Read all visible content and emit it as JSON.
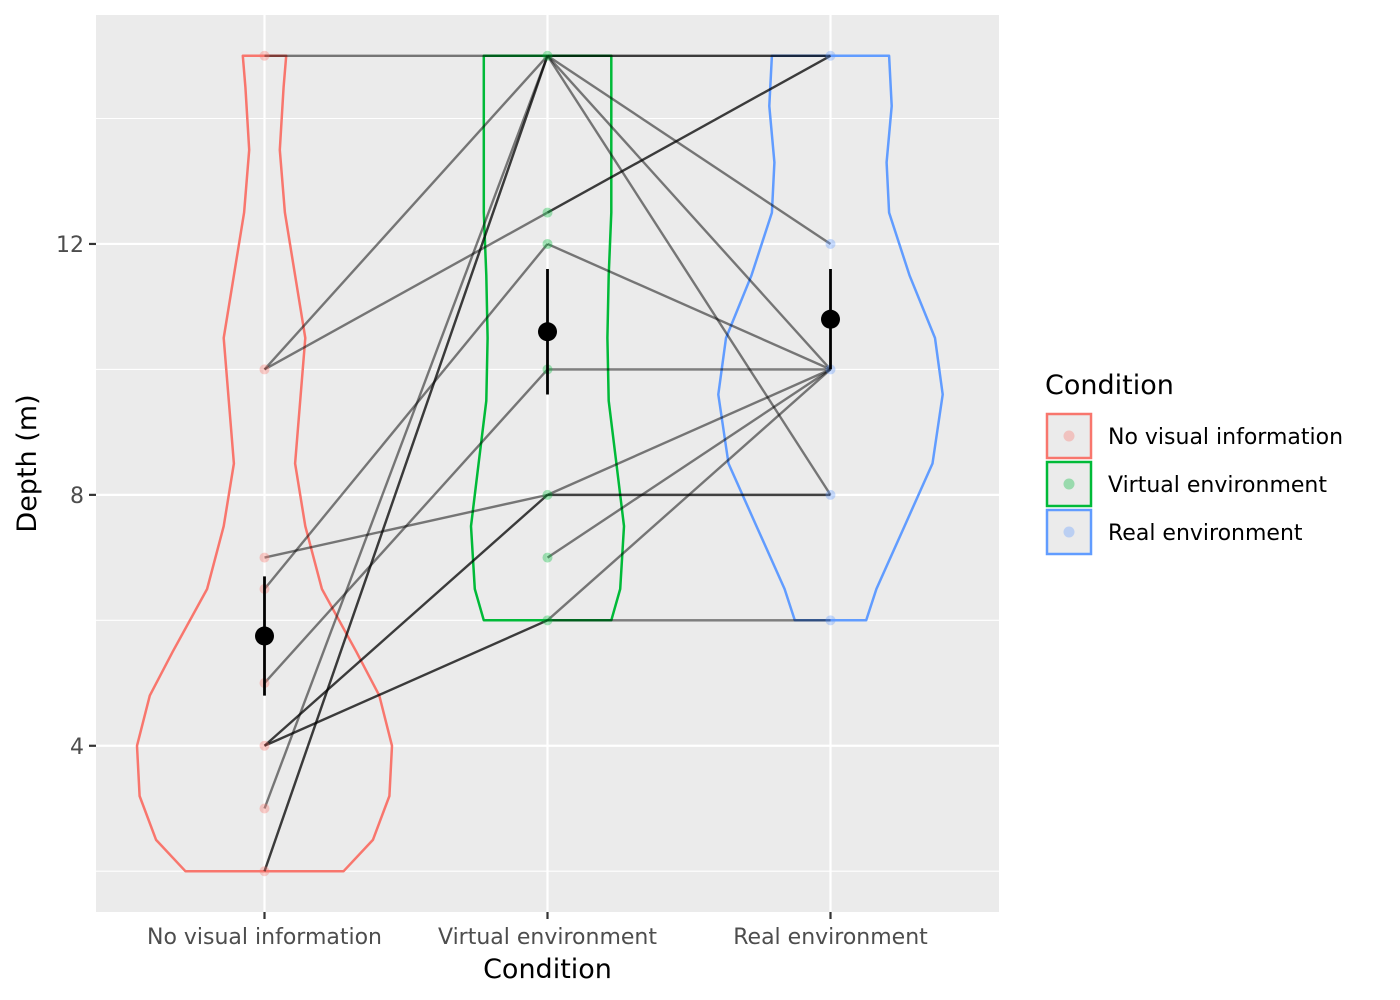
{
  "chart_data": {
    "type": "violin",
    "xlabel": "Condition",
    "ylabel": "Depth (m)",
    "ylim": [
      1.35,
      15.65
    ],
    "y_ticks": [
      4,
      8,
      12
    ],
    "y_tick_labels": [
      "4",
      "8",
      "12"
    ],
    "grid": true,
    "legend_title": "Condition",
    "legend_position": "right",
    "categories": [
      "No visual information",
      "Virtual environment",
      "Real environment"
    ],
    "colors": [
      "#F8766D",
      "#00BA38",
      "#619CFF"
    ],
    "points": [
      [
        15,
        10,
        7,
        6.5,
        5,
        4,
        3,
        2
      ],
      [
        15,
        12.5,
        12,
        10,
        8,
        7,
        6
      ],
      [
        15,
        12,
        10,
        8,
        6
      ]
    ],
    "means": [
      5.75,
      10.6,
      10.8
    ],
    "error_bars": [
      [
        4.8,
        6.7
      ],
      [
        9.6,
        11.6
      ],
      [
        10,
        11.6
      ]
    ],
    "violins": [
      {
        "ymin": 2,
        "ymax": 15,
        "profile": [
          [
            2,
            0.62
          ],
          [
            2.5,
            0.85
          ],
          [
            3.2,
            0.98
          ],
          [
            4,
            1.0
          ],
          [
            4.8,
            0.9
          ],
          [
            5.5,
            0.72
          ],
          [
            6.5,
            0.45
          ],
          [
            7.5,
            0.32
          ],
          [
            8.5,
            0.24
          ],
          [
            9.5,
            0.28
          ],
          [
            10.5,
            0.32
          ],
          [
            11.5,
            0.24
          ],
          [
            12.5,
            0.16
          ],
          [
            13.5,
            0.12
          ],
          [
            14.5,
            0.15
          ],
          [
            15,
            0.17
          ]
        ]
      },
      {
        "ymin": 6,
        "ymax": 15,
        "profile": [
          [
            6,
            0.5
          ],
          [
            6.5,
            0.57
          ],
          [
            7.5,
            0.6
          ],
          [
            8.5,
            0.54
          ],
          [
            9.5,
            0.48
          ],
          [
            10.5,
            0.47
          ],
          [
            11.5,
            0.48
          ],
          [
            12.5,
            0.5
          ],
          [
            13.5,
            0.5
          ],
          [
            14.5,
            0.5
          ],
          [
            15,
            0.5
          ]
        ]
      },
      {
        "ymin": 6,
        "ymax": 15,
        "profile": [
          [
            6,
            0.28
          ],
          [
            6.5,
            0.36
          ],
          [
            7.5,
            0.58
          ],
          [
            8.5,
            0.8
          ],
          [
            9.6,
            0.88
          ],
          [
            10.5,
            0.82
          ],
          [
            11.5,
            0.62
          ],
          [
            12.5,
            0.46
          ],
          [
            13.3,
            0.44
          ],
          [
            14.2,
            0.48
          ],
          [
            15,
            0.46
          ]
        ]
      }
    ],
    "paired_lines": [
      [
        0,
        15,
        1,
        15,
        0.5
      ],
      [
        0,
        10,
        1,
        15,
        0.5
      ],
      [
        0,
        10,
        1,
        12.5,
        0.5
      ],
      [
        0,
        7,
        1,
        8,
        0.5
      ],
      [
        0,
        6.5,
        1,
        12,
        0.5
      ],
      [
        0,
        5,
        1,
        10,
        0.5
      ],
      [
        0,
        4,
        1,
        8,
        0.75
      ],
      [
        0,
        4,
        1,
        6,
        0.75
      ],
      [
        0,
        3,
        1,
        15,
        0.5
      ],
      [
        0,
        2,
        1,
        15,
        0.5
      ],
      [
        0,
        2,
        1,
        15,
        0.5
      ],
      [
        1,
        15,
        2,
        15,
        0.75
      ],
      [
        1,
        15,
        2,
        12,
        0.5
      ],
      [
        1,
        15,
        2,
        10,
        0.5
      ],
      [
        1,
        15,
        2,
        8,
        0.5
      ],
      [
        1,
        12.5,
        2,
        15,
        0.75
      ],
      [
        1,
        12,
        2,
        10,
        0.5
      ],
      [
        1,
        10,
        2,
        10,
        0.5
      ],
      [
        1,
        8,
        2,
        10,
        0.5
      ],
      [
        1,
        8,
        2,
        8,
        0.75
      ],
      [
        1,
        7,
        2,
        10,
        0.5
      ],
      [
        1,
        6,
        2,
        10,
        0.5
      ],
      [
        1,
        6,
        2,
        6,
        0.5
      ]
    ]
  }
}
